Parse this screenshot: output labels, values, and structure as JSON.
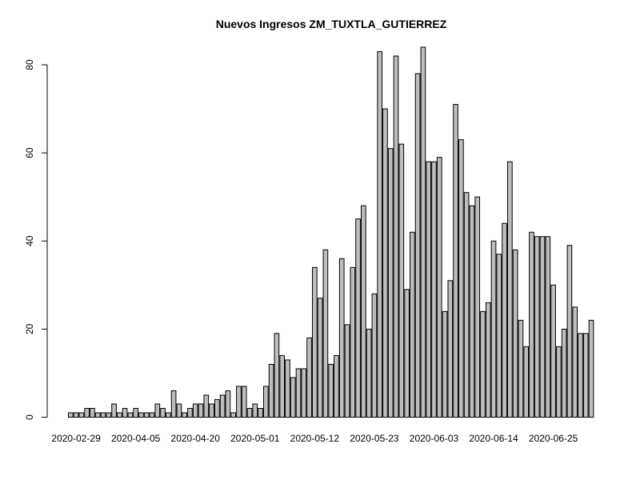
{
  "chart_data": {
    "type": "bar",
    "title": "Nuevos Ingresos ZM_TUXTLA_GUTIERREZ",
    "xlabel": "",
    "ylabel": "",
    "ylim": [
      0,
      84
    ],
    "y_ticks": [
      0,
      20,
      40,
      60,
      80
    ],
    "x_tick_labels": [
      "2020-02-29",
      "2020-04-05",
      "2020-04-20",
      "2020-05-01",
      "2020-05-12",
      "2020-05-23",
      "2020-06-03",
      "2020-06-14",
      "2020-06-25"
    ],
    "grid": false,
    "bar_color": "#bebebe",
    "values": [
      1,
      1,
      1,
      2,
      2,
      1,
      1,
      1,
      3,
      1,
      2,
      1,
      2,
      1,
      1,
      1,
      3,
      2,
      1,
      6,
      3,
      1,
      2,
      3,
      3,
      5,
      3,
      4,
      5,
      6,
      1,
      7,
      7,
      2,
      3,
      2,
      7,
      12,
      19,
      14,
      13,
      9,
      11,
      11,
      18,
      34,
      27,
      38,
      12,
      14,
      36,
      21,
      34,
      45,
      48,
      20,
      28,
      83,
      70,
      61,
      82,
      62,
      29,
      42,
      78,
      84,
      58,
      58,
      59,
      24,
      31,
      71,
      63,
      51,
      48,
      50,
      24,
      26,
      40,
      37,
      44,
      58,
      38,
      22,
      16,
      42,
      41,
      41,
      41,
      30,
      16,
      20,
      39,
      25,
      19,
      19,
      22
    ]
  }
}
